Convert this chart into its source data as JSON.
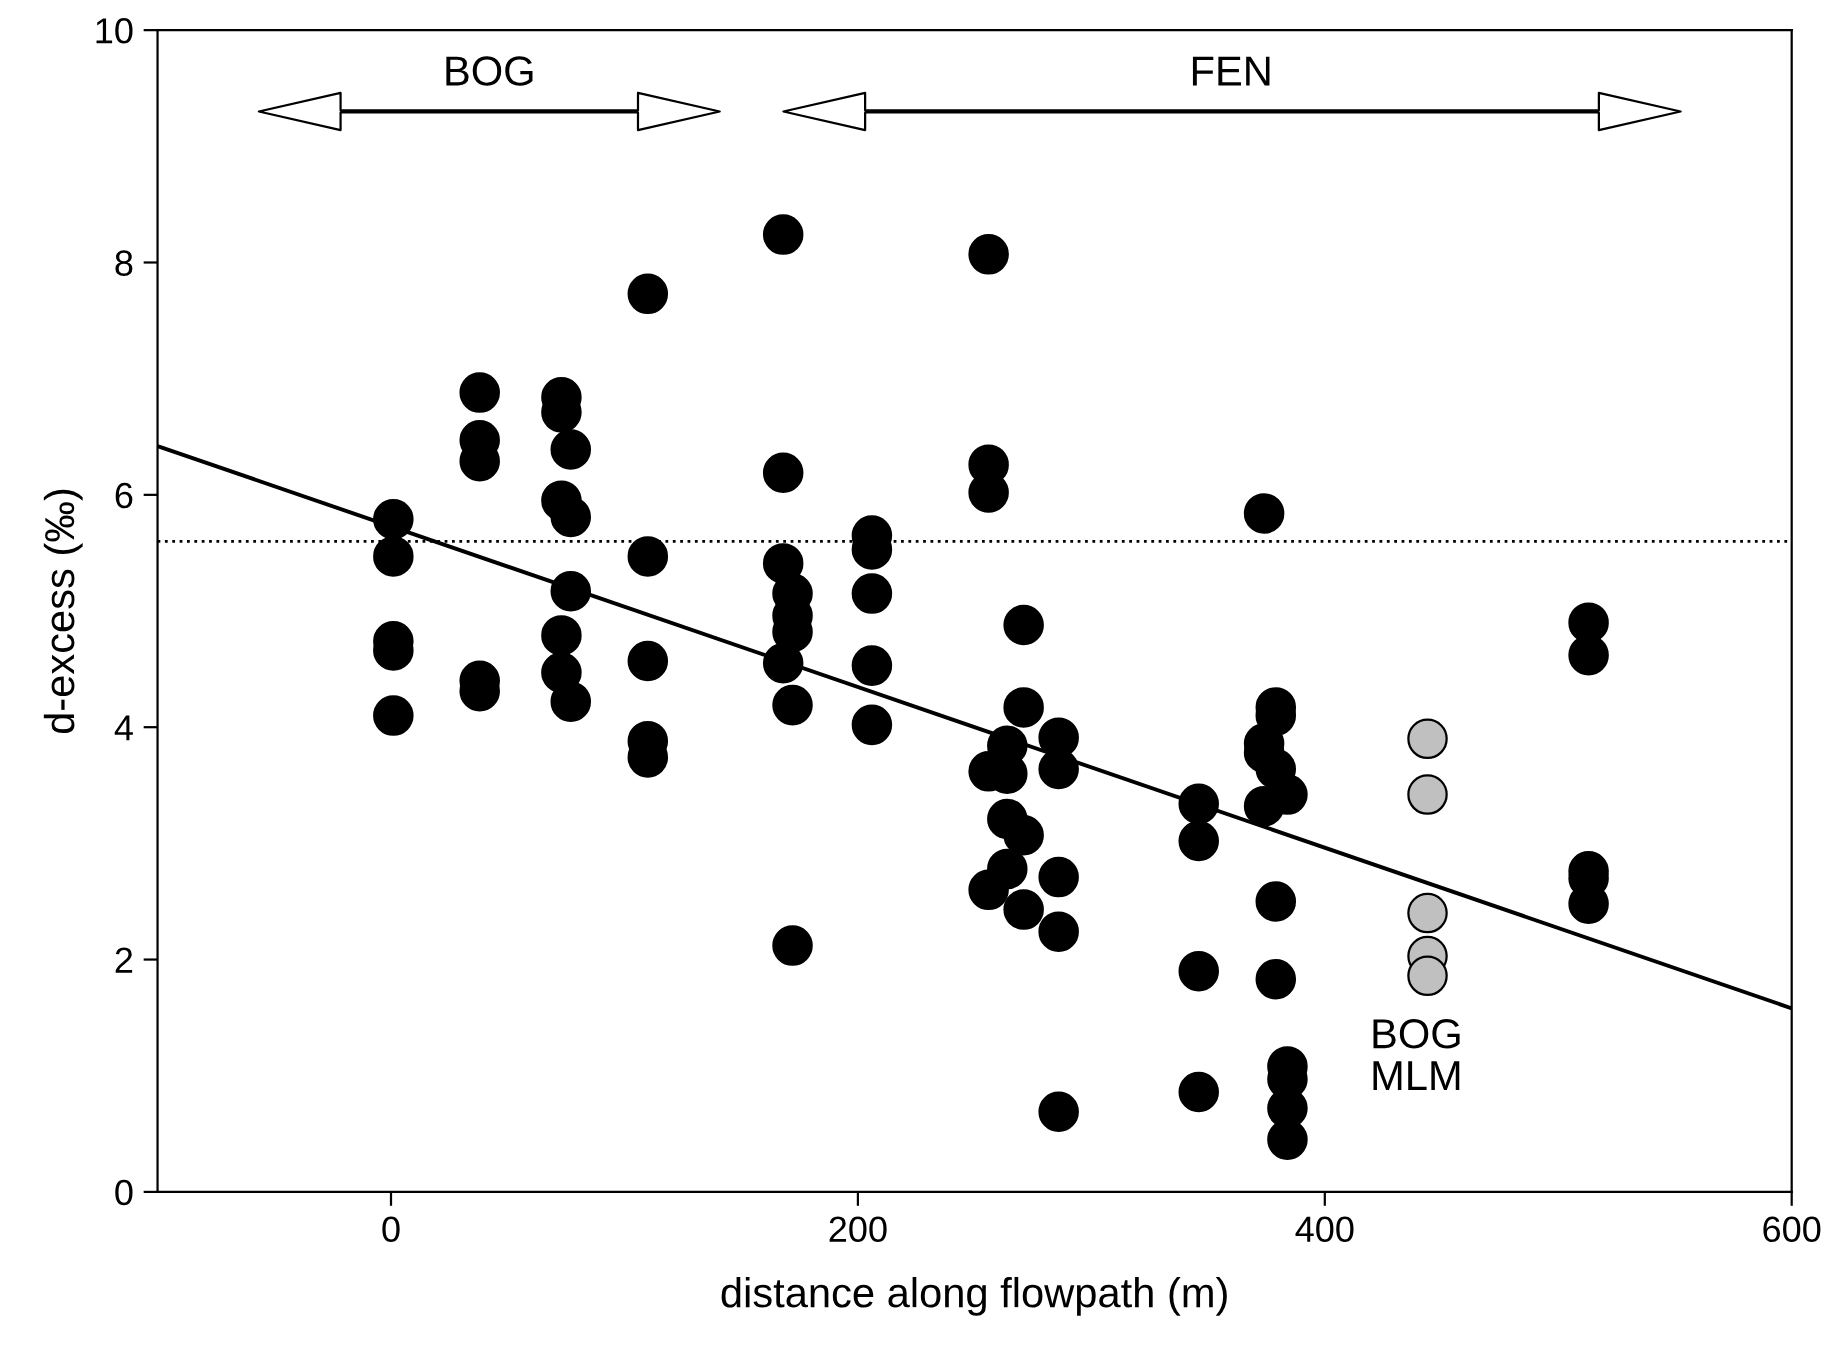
{
  "chart_data": {
    "type": "scatter",
    "xlabel": "distance along flowpath (m)",
    "ylabel": "d-excess (‰)",
    "xlim": [
      -100,
      600
    ],
    "ylim": [
      0,
      10
    ],
    "xticks": [
      0,
      200,
      400,
      600
    ],
    "yticks": [
      0,
      2,
      4,
      6,
      8,
      10
    ],
    "grid": false,
    "legend": false,
    "marker": "circle",
    "series": [
      {
        "color": "#000000",
        "x": [
          1,
          1,
          1,
          1,
          1,
          38,
          38,
          38,
          38,
          38,
          73,
          73,
          77,
          73,
          77,
          77,
          73,
          73,
          77,
          110,
          110,
          110,
          110,
          110,
          168,
          168,
          168,
          172,
          172,
          172,
          168,
          172,
          172,
          206,
          206,
          206,
          206,
          206,
          256,
          256,
          256,
          271,
          271,
          264,
          286,
          256,
          264,
          286,
          264,
          271,
          286,
          264,
          256,
          271,
          286,
          286,
          374,
          346,
          346,
          346,
          346,
          379,
          379,
          374,
          374,
          379,
          384,
          374,
          379,
          379,
          384,
          384,
          384,
          384,
          513,
          513,
          513,
          513,
          513
        ],
        "values": [
          5.79,
          5.47,
          4.74,
          4.66,
          4.1,
          6.88,
          6.47,
          6.29,
          4.4,
          4.31,
          6.84,
          6.71,
          6.39,
          5.95,
          5.81,
          5.17,
          4.79,
          4.47,
          4.22,
          7.73,
          5.47,
          4.57,
          3.88,
          3.74,
          8.24,
          6.19,
          5.41,
          5.15,
          4.96,
          4.82,
          4.55,
          4.19,
          2.12,
          5.65,
          5.53,
          5.15,
          4.53,
          4.02,
          8.07,
          6.26,
          6.02,
          4.88,
          4.17,
          3.84,
          3.91,
          3.62,
          3.6,
          3.64,
          3.21,
          3.07,
          2.71,
          2.78,
          2.6,
          2.43,
          2.24,
          0.69,
          5.84,
          3.34,
          3.02,
          1.9,
          0.86,
          4.17,
          4.1,
          3.86,
          3.78,
          3.64,
          3.42,
          3.32,
          2.5,
          1.83,
          1.08,
          0.97,
          0.72,
          0.45,
          4.9,
          4.62,
          2.76,
          2.7,
          2.48
        ]
      },
      {
        "color": "#c0c0c0",
        "x": [
          444,
          444,
          444,
          444,
          444
        ],
        "values": [
          3.9,
          3.42,
          2.4,
          2.03,
          1.86
        ]
      },
      {
        "type": "line",
        "color": "#000000",
        "marker": "none",
        "line_style": "solid",
        "x": [
          -100,
          600
        ],
        "values": [
          6.42,
          1.58
        ]
      }
    ],
    "ref_lines": [
      {
        "axis": "y",
        "value": 5.6,
        "line_style": "dotted",
        "color": "#000000"
      }
    ],
    "annotations": [
      "BOG",
      "FEN",
      "BOG\nMLM"
    ]
  }
}
